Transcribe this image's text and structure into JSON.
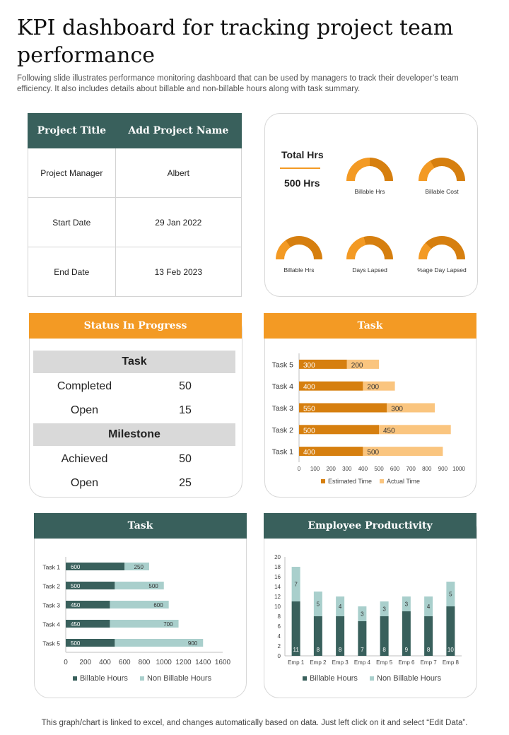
{
  "header": {
    "title": "KPI dashboard for tracking project team performance",
    "subtitle": "Following slide illustrates performance monitoring dashboard that can be used by managers to track their developer’s team efficiency.  It also includes details about billable and non-billable hours along with task summary."
  },
  "project": {
    "col1_header": "Project Title",
    "col2_header": "Add Project Name",
    "rows": [
      {
        "label": "Project Manager",
        "value": "Albert"
      },
      {
        "label": "Start Date",
        "value": "29 Jan 2022"
      },
      {
        "label": "End Date",
        "value": "13 Feb 2023"
      }
    ]
  },
  "hours": {
    "title": "Total Hrs",
    "value": "500 Hrs",
    "gauges": [
      {
        "label": "Billable Hrs"
      },
      {
        "label": "Billable Cost"
      },
      {
        "label": "Billable Hrs"
      },
      {
        "label": "Days Lapsed"
      },
      {
        "label": "%age Day Lapsed"
      }
    ]
  },
  "status": {
    "title": "Status In Progress",
    "task_header": "Task",
    "task_rows": [
      {
        "label": "Completed",
        "value": "50"
      },
      {
        "label": "Open",
        "value": "15"
      }
    ],
    "milestone_header": "Milestone",
    "milestone_rows": [
      {
        "label": "Achieved",
        "value": "50"
      },
      {
        "label": "Open",
        "value": "25"
      }
    ]
  },
  "colors": {
    "orange": "#f39a24",
    "dark_orange": "#d67f0f",
    "light_orange": "#fac57f",
    "teal": "#39605c",
    "light_teal": "#a9cfcc"
  },
  "chart_data": [
    {
      "id": "task_time",
      "type": "bar",
      "orientation": "horizontal",
      "stacked": true,
      "title": "Task",
      "categories": [
        "Task 5",
        "Task 4",
        "Task 3",
        "Task 2",
        "Task 1"
      ],
      "series": [
        {
          "name": "Estimated Time",
          "values": [
            300,
            400,
            550,
            500,
            400
          ]
        },
        {
          "name": "Actual Time",
          "values": [
            200,
            200,
            300,
            450,
            500
          ]
        }
      ],
      "xlim": [
        0,
        1000
      ],
      "xticks": [
        0,
        100,
        200,
        300,
        400,
        500,
        600,
        700,
        800,
        900,
        1000
      ],
      "legend": "bottom"
    },
    {
      "id": "task_hours",
      "type": "bar",
      "orientation": "horizontal",
      "stacked": true,
      "title": "Task",
      "categories": [
        "Task 1",
        "Task 2",
        "Task 3",
        "Task 4",
        "Task 5"
      ],
      "series": [
        {
          "name": "Billable Hours",
          "values": [
            600,
            500,
            450,
            450,
            500
          ]
        },
        {
          "name": "Non Billable Hours",
          "values": [
            250,
            500,
            600,
            700,
            900
          ]
        }
      ],
      "xlim": [
        0,
        1600
      ],
      "xticks": [
        0,
        200,
        400,
        600,
        800,
        1000,
        1200,
        1400,
        1600
      ],
      "legend": "bottom"
    },
    {
      "id": "employee_productivity",
      "type": "bar",
      "orientation": "vertical",
      "stacked": true,
      "title": "Employee Productivity",
      "categories": [
        "Emp 1",
        "Emp 2",
        "Emp 3",
        "Emp 4",
        "Emp 5",
        "Emp 6",
        "Emp 7",
        "Emp 8"
      ],
      "series": [
        {
          "name": "Billable Hours",
          "values": [
            11,
            8,
            8,
            7,
            8,
            9,
            8,
            10
          ]
        },
        {
          "name": "Non Billable Hours",
          "values": [
            7,
            5,
            4,
            3,
            3,
            3,
            4,
            5
          ]
        }
      ],
      "ylim": [
        0,
        20
      ],
      "yticks": [
        0,
        2,
        4,
        6,
        8,
        10,
        12,
        14,
        16,
        18,
        20
      ],
      "legend": "bottom"
    }
  ],
  "footer": {
    "note": "This graph/chart is linked to excel,  and changes automatically based on data. Just left click on it and select “Edit Data”."
  }
}
